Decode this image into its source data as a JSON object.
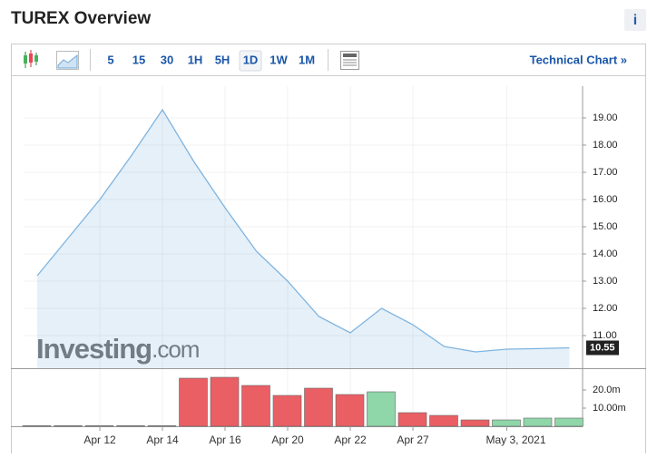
{
  "header": {
    "title": "TUREX Overview",
    "info": "i"
  },
  "toolbar": {
    "intervals": [
      "5",
      "15",
      "30",
      "1H",
      "5H",
      "1D",
      "1W",
      "1M"
    ],
    "link": "Technical Chart »"
  },
  "watermark": {
    "brand": "Investing",
    "suffix": ".com"
  },
  "chart_data": {
    "type": "line",
    "categories": [
      null,
      null,
      "Apr 12",
      null,
      "Apr 14",
      null,
      "Apr 16",
      null,
      "Apr 20",
      null,
      "Apr 22",
      null,
      "Apr 27",
      null,
      null,
      "May 3, 2021",
      null,
      null
    ],
    "values": [
      13.2,
      14.6,
      16.0,
      17.6,
      19.3,
      17.4,
      15.7,
      14.1,
      13.0,
      11.7,
      11.1,
      12.0,
      11.4,
      10.6,
      10.4,
      10.5,
      10.52,
      10.55
    ],
    "color": "#7fb4df",
    "ylim": [
      9.8,
      20
    ],
    "yticks": [
      {
        "value": 11,
        "label": "11.00"
      },
      {
        "value": 12,
        "label": "12.00"
      },
      {
        "value": 13,
        "label": "13.00"
      },
      {
        "value": 14,
        "label": "14.00"
      },
      {
        "value": 15,
        "label": "15.00"
      },
      {
        "value": 16,
        "label": "16.00"
      },
      {
        "value": 17,
        "label": "17.00"
      },
      {
        "value": 18,
        "label": "18.00"
      },
      {
        "value": 19,
        "label": "19.00"
      }
    ],
    "volume": {
      "values": [
        300000,
        300000,
        300000,
        300000,
        300000,
        26500000,
        27000000,
        22500000,
        17000000,
        21000000,
        17500000,
        19000000,
        7500000,
        6000000,
        3500000,
        3500000,
        4500000,
        4500000
      ],
      "colors": [
        "#8fd6a8",
        "#8fd6a8",
        "#8fd6a8",
        "#8fd6a8",
        "#8fd6a8",
        "#ea5f64",
        "#ea5f64",
        "#ea5f64",
        "#ea5f64",
        "#ea5f64",
        "#ea5f64",
        "#8fd6a8",
        "#ea5f64",
        "#ea5f64",
        "#ea5f64",
        "#8fd6a8",
        "#8fd6a8",
        "#8fd6a8"
      ],
      "ylim": [
        0,
        30000000
      ],
      "yticks": [
        {
          "value": 10000000,
          "label": "10.00m"
        },
        {
          "value": 20000000,
          "label": "20.0m"
        }
      ]
    }
  }
}
